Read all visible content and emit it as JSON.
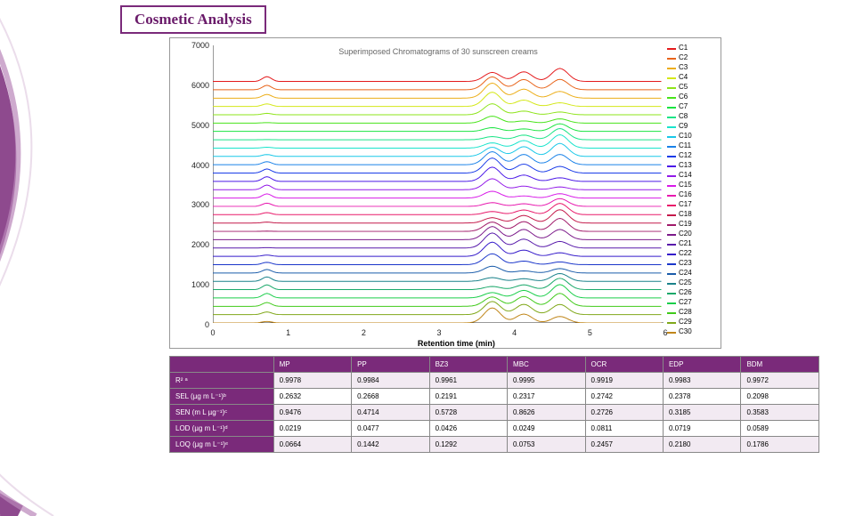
{
  "title": "Cosmetic Analysis",
  "chart": {
    "type": "line",
    "title": "Superimposed Chromatograms of 30 sunscreen creams",
    "xlabel": "Retention time (min)",
    "xlim": [
      0,
      6
    ],
    "xtick_step": 1,
    "ylim": [
      0,
      7000
    ],
    "yticks": [
      0,
      1000,
      2000,
      3000,
      4000,
      5000,
      6000,
      7000
    ],
    "background_color": "#ffffff",
    "axis_color": "#333333",
    "series_count": 30,
    "series_colors": [
      "#e41a1c",
      "#e8641a",
      "#ecae19",
      "#d4e819",
      "#8ee41a",
      "#48e41a",
      "#1ae440",
      "#1ae486",
      "#1ae4cc",
      "#1ac8e8",
      "#1a82e8",
      "#1a3ce8",
      "#4c1ae8",
      "#921ae8",
      "#d81ae8",
      "#e81ab0",
      "#e81a6a",
      "#c41a4a",
      "#a01a6a",
      "#7c1a8a",
      "#581aaa",
      "#341aca",
      "#1a36ca",
      "#1a5caa",
      "#1a828a",
      "#1aa86a",
      "#1ace4a",
      "#40ca1a",
      "#80a81a",
      "#c0861a"
    ],
    "peak_x_relative": [
      0.62,
      0.69,
      0.77
    ],
    "baseline_step": 210,
    "peak_heights": [
      380,
      260,
      340
    ],
    "peak_width": 0.018
  },
  "table": {
    "columns": [
      "",
      "MP",
      "PP",
      "BZ3",
      "MBC",
      "OCR",
      "EDP",
      "BDM"
    ],
    "rows": [
      {
        "label": "R² ᵃ",
        "cells": [
          "0.9978",
          "0.9984",
          "0.9961",
          "0.9995",
          "0.9919",
          "0.9983",
          "0.9972"
        ]
      },
      {
        "label": "SEL (µg m L⁻¹)ᵇ",
        "cells": [
          "0.2632",
          "0.2668",
          "0.2191",
          "0.2317",
          "0.2742",
          "0.2378",
          "0.2098"
        ]
      },
      {
        "label": "SEN (m L µg⁻¹)ᶜ",
        "cells": [
          "0.9476",
          "0.4714",
          "0.5728",
          "0.8626",
          "0.2726",
          "0.3185",
          "0.3583"
        ]
      },
      {
        "label": "LOD (µg m L⁻¹)ᵈ",
        "cells": [
          "0.0219",
          "0.0477",
          "0.0426",
          "0.0249",
          "0.0811",
          "0.0719",
          "0.0589"
        ]
      },
      {
        "label": "LOQ (µg m L⁻¹)ᵉ",
        "cells": [
          "0.0664",
          "0.1442",
          "0.1292",
          "0.0753",
          "0.2457",
          "0.2180",
          "0.1786"
        ]
      }
    ],
    "header_bg": "#7a2a7a",
    "header_color": "#ffffff",
    "row_odd_bg": "#f2eaf2",
    "row_even_bg": "#ffffff",
    "colwidths_pct": [
      16,
      12,
      12,
      12,
      12,
      12,
      12,
      12
    ],
    "fontsize": 8
  }
}
